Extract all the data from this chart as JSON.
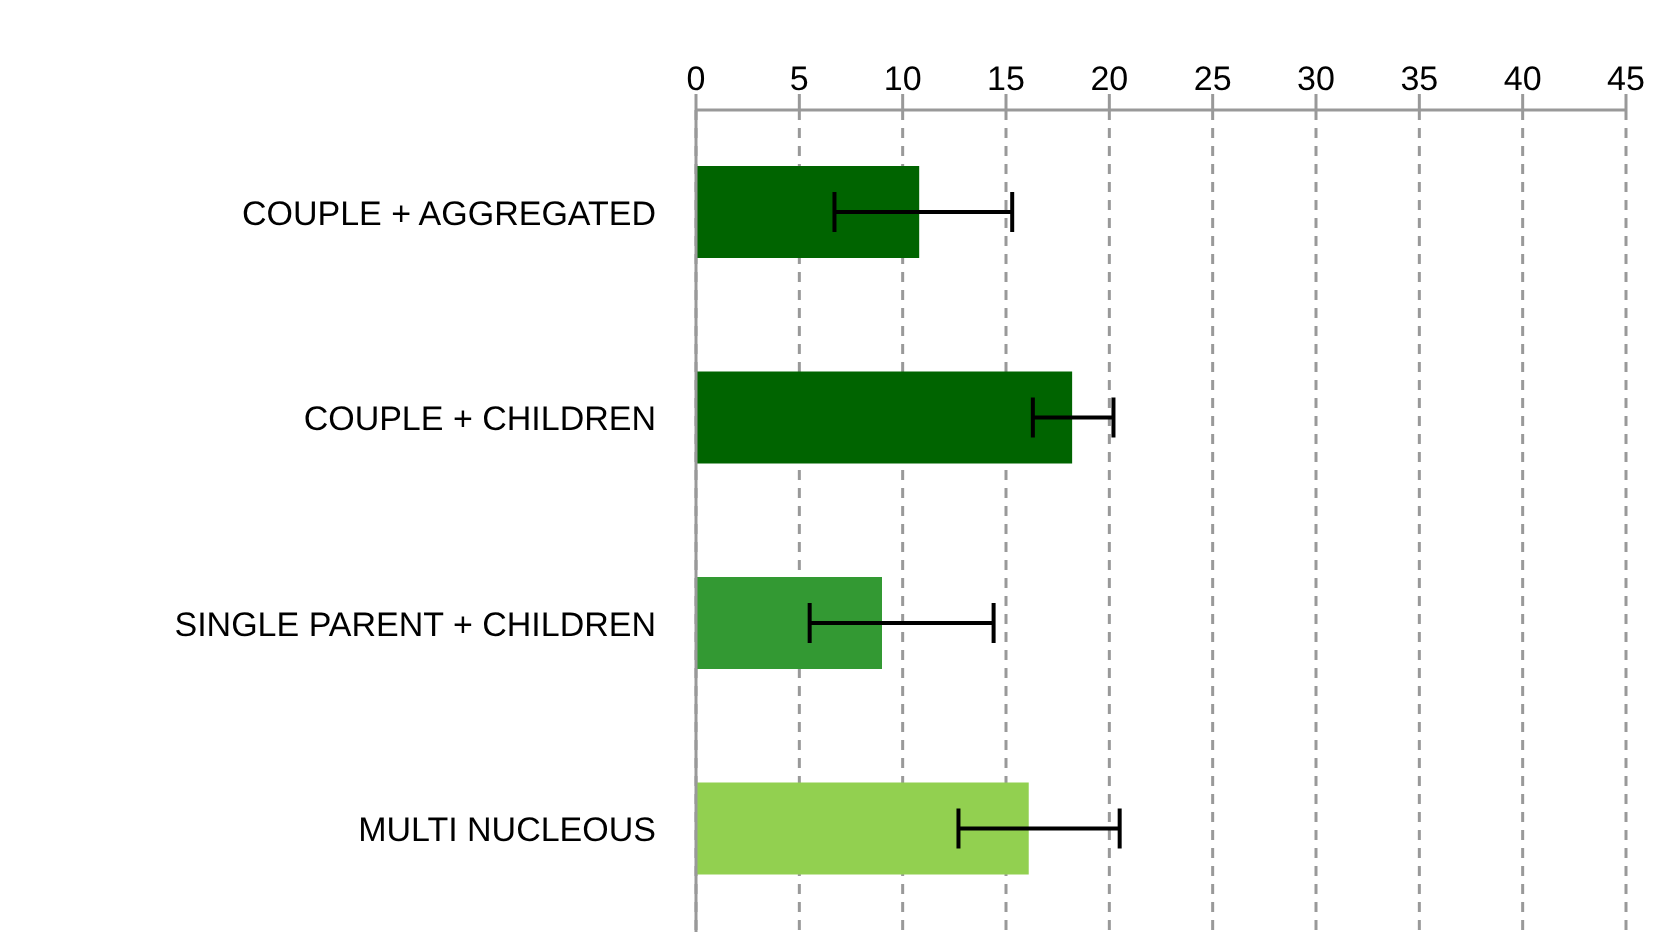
{
  "chart_data": {
    "type": "bar",
    "orientation": "horizontal",
    "categories": [
      "COUPLE + AGGREGATED",
      "COUPLE  + CHILDREN",
      "SINGLE PARENT  + CHILDREN",
      "MULTI NUCLEOUS"
    ],
    "values": [
      10.8,
      18.2,
      9.0,
      16.1
    ],
    "colors": [
      "#006400",
      "#006400",
      "#339933",
      "#92d050"
    ],
    "errors": [
      [
        6.7,
        15.3
      ],
      [
        16.3,
        20.2
      ],
      [
        5.5,
        14.4
      ],
      [
        12.7,
        20.5
      ]
    ],
    "xlim": [
      0,
      45
    ],
    "xticks": [
      0,
      5,
      10,
      15,
      20,
      25,
      30,
      35,
      40,
      45
    ],
    "grid": "x"
  }
}
